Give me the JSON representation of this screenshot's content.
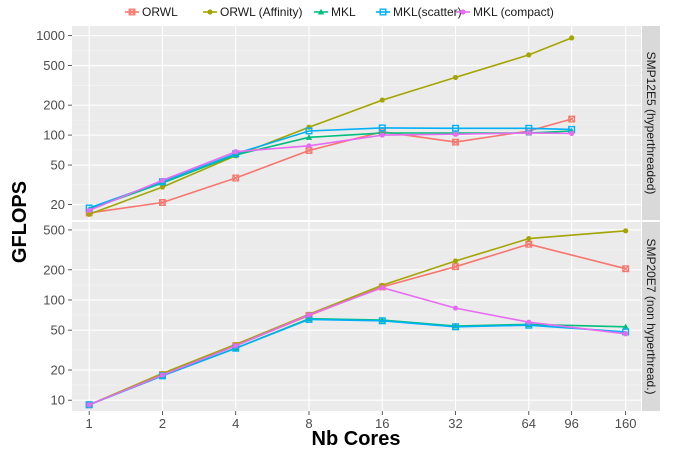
{
  "chart_data": {
    "type": "line",
    "xlabel": "Nb Cores",
    "ylabel": "GFLOPS",
    "x_scale": "log2",
    "y_scale": "log10",
    "xlim": [
      0.85,
      185
    ],
    "x_ticks": [
      1,
      2,
      4,
      8,
      16,
      32,
      64,
      96,
      160
    ],
    "x_tick_labels": [
      "1",
      "2",
      "4",
      "8",
      "16",
      "32",
      "64",
      "96",
      "160"
    ],
    "legend_position": "top",
    "grid": true,
    "legend": [
      {
        "name": "ORWL",
        "color": "#F8766D",
        "marker": "square-x"
      },
      {
        "name": "ORWL (Affinity)",
        "color": "#A3A500",
        "marker": "circle"
      },
      {
        "name": "MKL",
        "color": "#00BF7D",
        "marker": "triangle"
      },
      {
        "name": "MKL(scatter)",
        "color": "#00B0F6",
        "marker": "square"
      },
      {
        "name": "MKL (compact)",
        "color": "#E76BF3",
        "marker": "circle"
      }
    ],
    "panels": [
      {
        "strip_label": "SMP12E5 (hyperthreaded)",
        "ylim": [
          14,
          1250
        ],
        "y_ticks": [
          20,
          50,
          100,
          200,
          500,
          1000
        ],
        "y_tick_labels": [
          "20",
          "50",
          "100",
          "200",
          "500",
          "1000"
        ],
        "series": [
          {
            "name": "ORWL",
            "x": [
              1,
              2,
              4,
              8,
              16,
              32,
              64,
              96
            ],
            "y": [
              16.5,
              21,
              37,
              70,
              108,
              85,
              110,
              145
            ]
          },
          {
            "name": "ORWL (Affinity)",
            "x": [
              1,
              2,
              4,
              8,
              16,
              32,
              64,
              96
            ],
            "y": [
              16,
              30,
              62,
              120,
              225,
              380,
              640,
              950
            ]
          },
          {
            "name": "MKL",
            "x": [
              1,
              2,
              4,
              8,
              16,
              32,
              64,
              96
            ],
            "y": [
              18,
              33,
              63,
              95,
              105,
              105,
              105,
              110
            ]
          },
          {
            "name": "MKL(scatter)",
            "x": [
              1,
              2,
              4,
              8,
              16,
              32,
              64,
              96
            ],
            "y": [
              18.5,
              34,
              65,
              110,
              118,
              117,
              117,
              114
            ]
          },
          {
            "name": "MKL (compact)",
            "x": [
              1,
              2,
              4,
              8,
              16,
              32,
              64,
              96
            ],
            "y": [
              17.5,
              35,
              68,
              78,
              100,
              102,
              105,
              104
            ]
          }
        ]
      },
      {
        "strip_label": "SMP20E7 (non hyperthread.)",
        "ylim": [
          7.8,
          600
        ],
        "y_ticks": [
          10,
          20,
          50,
          100,
          200,
          500
        ],
        "y_tick_labels": [
          "10",
          "20",
          "50",
          "100",
          "200",
          "500"
        ],
        "series": [
          {
            "name": "ORWL",
            "x": [
              1,
              2,
              4,
              8,
              16,
              32,
              64,
              160
            ],
            "y": [
              9,
              18,
              35,
              70,
              135,
              215,
              360,
              205
            ]
          },
          {
            "name": "ORWL (Affinity)",
            "x": [
              1,
              2,
              4,
              8,
              16,
              32,
              64,
              160
            ],
            "y": [
              9,
              18.5,
              36,
              72,
              140,
              245,
              410,
              490
            ]
          },
          {
            "name": "MKL",
            "x": [
              1,
              2,
              4,
              8,
              16,
              32,
              64,
              160
            ],
            "y": [
              9,
              17.5,
              33,
              65,
              63,
              55,
              57,
              54
            ]
          },
          {
            "name": "MKL(scatter)",
            "x": [
              1,
              2,
              4,
              8,
              16,
              32,
              64,
              160
            ],
            "y": [
              9,
              17.5,
              33,
              64,
              62,
              54,
              56,
              48
            ]
          },
          {
            "name": "MKL (compact)",
            "x": [
              1,
              2,
              4,
              8,
              16,
              32,
              64,
              160
            ],
            "y": [
              9,
              17.8,
              35,
              71,
              133,
              83,
              60,
              46
            ]
          }
        ]
      }
    ]
  }
}
